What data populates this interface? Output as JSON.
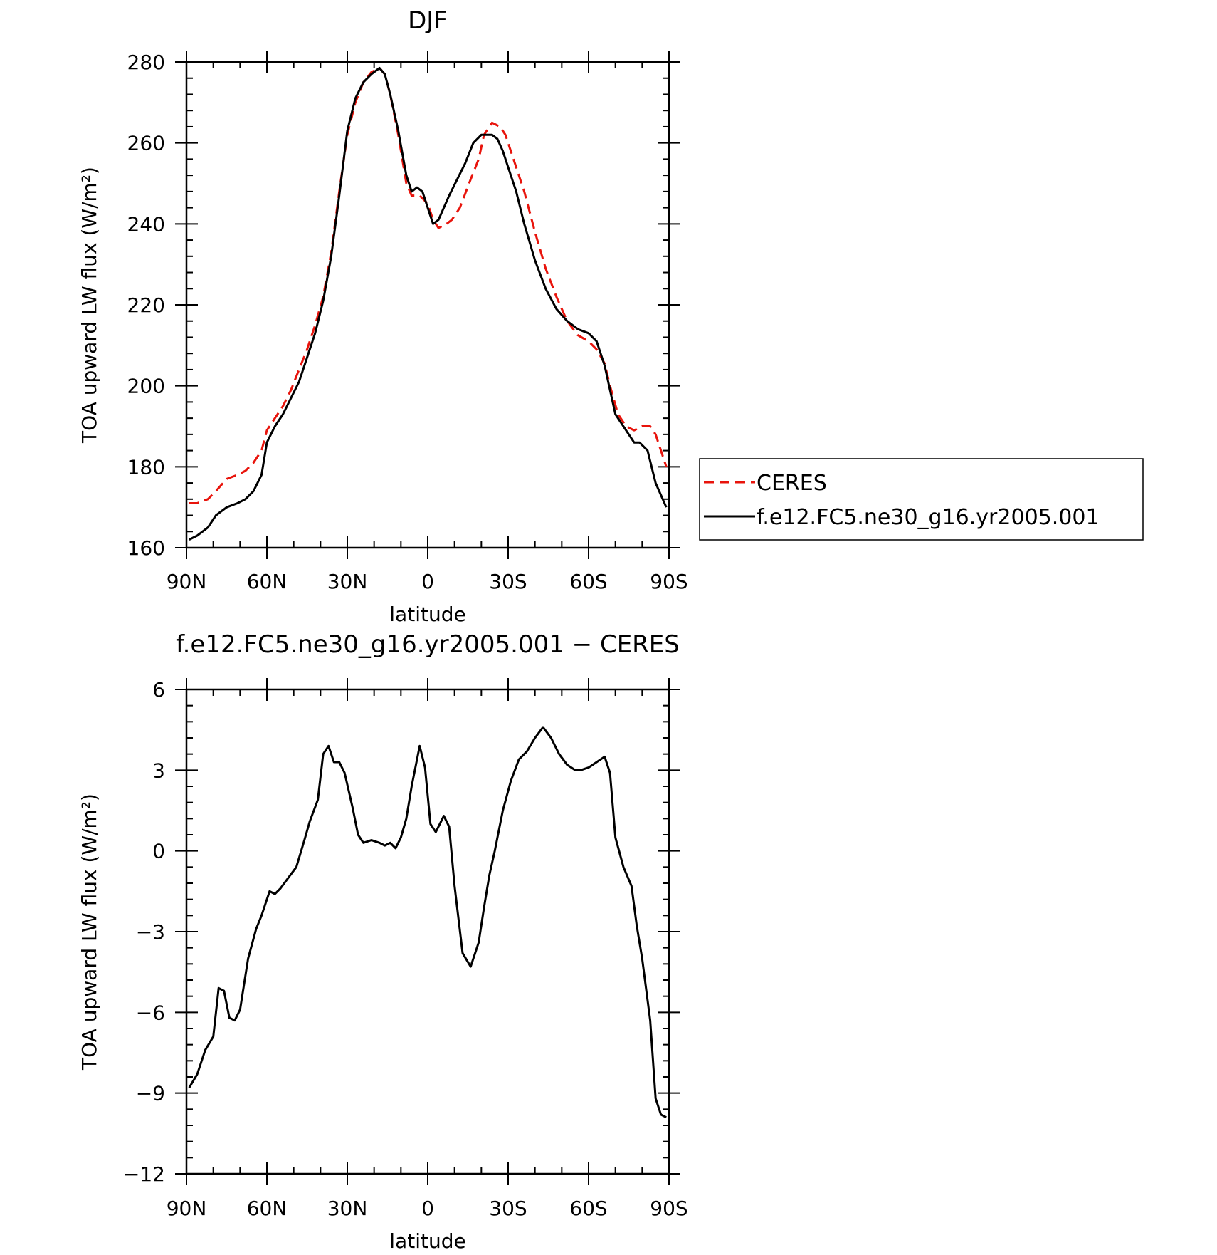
{
  "chart_data": [
    {
      "type": "line",
      "title": "DJF",
      "xlabel": "latitude",
      "ylabel": "TOA upward LW flux (W/m²)",
      "xlim": [
        -90,
        90
      ],
      "ylim": [
        160,
        280
      ],
      "x_tick_values": [
        -90,
        -60,
        -30,
        0,
        30,
        60,
        90
      ],
      "x_tick_labels": [
        "90N",
        "60N",
        "30N",
        "0",
        "30S",
        "60S",
        "90S"
      ],
      "y_tick_values": [
        160,
        180,
        200,
        220,
        240,
        260,
        280
      ],
      "y_tick_labels": [
        "160",
        "180",
        "200",
        "220",
        "240",
        "260",
        "280"
      ],
      "legend_position": "right",
      "series": [
        {
          "name": "CERES",
          "color": "#e8140c",
          "style": "dashed",
          "x": [
            -89,
            -86,
            -82,
            -79,
            -75,
            -71,
            -68,
            -65,
            -62,
            -60,
            -57,
            -54,
            -51,
            -48,
            -45,
            -42,
            -39,
            -36,
            -33,
            -30,
            -27,
            -24,
            -21,
            -18,
            -16,
            -14,
            -11,
            -8,
            -6,
            -3,
            0,
            2,
            4,
            7,
            9,
            12,
            16,
            19,
            21,
            24,
            27,
            29,
            32,
            36,
            40,
            44,
            48,
            52,
            56,
            60,
            63,
            66,
            68,
            71,
            74,
            77,
            80,
            83,
            85,
            87,
            89
          ],
          "y": [
            171,
            171,
            172,
            174,
            177,
            178,
            179,
            181,
            184,
            189,
            192,
            195,
            199,
            204,
            209,
            215,
            222,
            233,
            248,
            262,
            270,
            275,
            277.5,
            278.5,
            277,
            272,
            262,
            250,
            247,
            247,
            245,
            241,
            239,
            240,
            241,
            244,
            251,
            256,
            262,
            265,
            264,
            262,
            256,
            248,
            238,
            229,
            222,
            216,
            212.5,
            211,
            209,
            205.5,
            200,
            193,
            190,
            189,
            190,
            190,
            188,
            184,
            180
          ]
        },
        {
          "name": "f.e12.FC5.ne30_g16.yr2005.001",
          "color": "#000000",
          "style": "solid",
          "x": [
            -89,
            -86,
            -82,
            -79,
            -75,
            -71,
            -68,
            -65,
            -62,
            -60,
            -57,
            -54,
            -51,
            -48,
            -45,
            -42,
            -39,
            -36,
            -33,
            -30,
            -27,
            -24,
            -21,
            -18,
            -16,
            -14,
            -11,
            -8,
            -6,
            -4,
            -2,
            0,
            2,
            4,
            6,
            8,
            11,
            14,
            17,
            20,
            24,
            26,
            28,
            30,
            33,
            36,
            40,
            44,
            48,
            52,
            56,
            60,
            63,
            66,
            68,
            70,
            74,
            77,
            79,
            82,
            85,
            87,
            89
          ],
          "y": [
            162,
            163,
            165,
            168,
            170,
            171,
            172,
            174,
            178,
            186,
            190,
            193,
            197,
            201,
            207,
            213,
            221,
            232,
            247,
            263,
            271,
            275,
            277,
            278.5,
            277,
            272,
            263,
            252,
            248,
            249,
            248,
            244,
            240,
            241,
            244,
            247,
            251,
            255,
            260,
            262,
            262,
            261,
            258,
            254,
            248,
            240,
            231,
            224,
            219,
            216,
            214,
            213,
            211,
            205,
            199,
            193,
            189,
            186,
            186,
            184,
            176,
            173,
            170
          ]
        }
      ]
    },
    {
      "type": "line",
      "title": "f.e12.FC5.ne30_g16.yr2005.001 − CERES",
      "xlabel": "latitude",
      "ylabel": "TOA upward LW flux (W/m²)",
      "xlim": [
        -90,
        90
      ],
      "ylim": [
        -12,
        6
      ],
      "x_tick_values": [
        -90,
        -60,
        -30,
        0,
        30,
        60,
        90
      ],
      "x_tick_labels": [
        "90N",
        "60N",
        "30N",
        "0",
        "30S",
        "60S",
        "90S"
      ],
      "y_tick_values": [
        -12,
        -9,
        -6,
        -3,
        0,
        3,
        6
      ],
      "y_tick_labels": [
        "−12",
        "−9",
        "−6",
        "−3",
        "0",
        "3",
        "6"
      ],
      "series": [
        {
          "color": "#000000",
          "style": "solid",
          "x": [
            -89,
            -86,
            -83,
            -80,
            -78,
            -76,
            -74,
            -72,
            -70,
            -67,
            -64,
            -62,
            -59,
            -57,
            -55,
            -52,
            -49,
            -46,
            -44,
            -41,
            -39,
            -37,
            -35,
            -33,
            -31,
            -28,
            -26,
            -24,
            -21,
            -18,
            -16,
            -14,
            -12,
            -10,
            -8,
            -6,
            -3,
            -1,
            1,
            3,
            6,
            8,
            10,
            13,
            16,
            19,
            21,
            23,
            25,
            28,
            31,
            34,
            37,
            40,
            43,
            46,
            49,
            52,
            55,
            57,
            60,
            63,
            66,
            68,
            70,
            73,
            76,
            78,
            80,
            83,
            85,
            87,
            89
          ],
          "y": [
            -8.8,
            -8.3,
            -7.4,
            -6.9,
            -5.1,
            -5.2,
            -6.2,
            -6.3,
            -5.9,
            -4.0,
            -2.9,
            -2.4,
            -1.5,
            -1.6,
            -1.4,
            -1.0,
            -0.6,
            0.4,
            1.1,
            1.9,
            3.6,
            3.9,
            3.3,
            3.3,
            2.9,
            1.6,
            0.6,
            0.3,
            0.4,
            0.3,
            0.2,
            0.3,
            0.1,
            0.5,
            1.2,
            2.4,
            3.9,
            3.1,
            1.0,
            0.7,
            1.3,
            0.9,
            -1.3,
            -3.8,
            -4.3,
            -3.4,
            -2.1,
            -0.9,
            0.0,
            1.5,
            2.6,
            3.4,
            3.7,
            4.2,
            4.6,
            4.2,
            3.6,
            3.2,
            3.0,
            3.0,
            3.1,
            3.3,
            3.5,
            2.9,
            0.5,
            -0.6,
            -1.3,
            -2.8,
            -4.0,
            -6.3,
            -9.2,
            -9.8,
            -9.9
          ]
        }
      ]
    }
  ]
}
